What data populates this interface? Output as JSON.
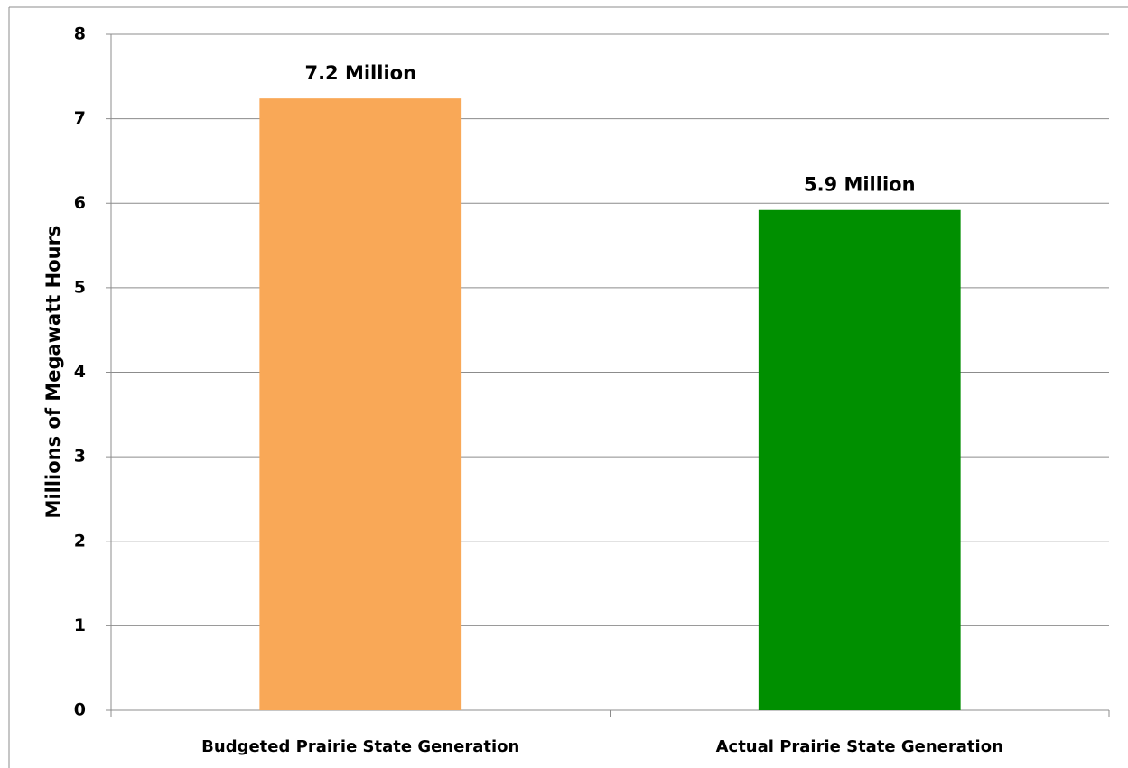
{
  "chart_data": {
    "type": "bar",
    "y_label": "Millions of Megawatt Hours",
    "categories": [
      "Budgeted Prairie State Generation",
      "Actual Prairie State Generation"
    ],
    "values": [
      7.24,
      5.92
    ],
    "value_labels": [
      "7.2 Million",
      "5.9 Million"
    ],
    "colors": [
      "#f9a857",
      "#008f00"
    ],
    "ylim": [
      0,
      8
    ],
    "yticks": [
      0,
      1,
      2,
      3,
      4,
      5,
      6,
      7,
      8
    ],
    "grid": true
  }
}
